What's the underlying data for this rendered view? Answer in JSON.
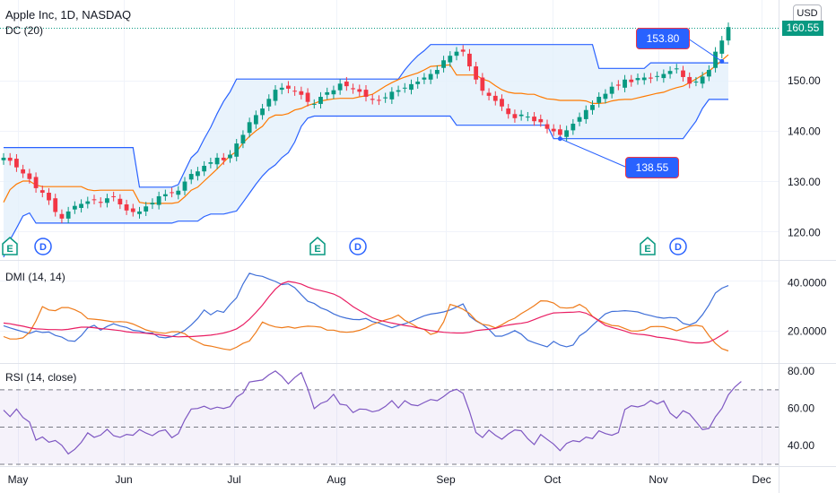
{
  "header": {
    "title": "Apple Inc, 1D, NASDAQ",
    "indicator": "DC (20)",
    "currency": "USD",
    "last_price": "160.55"
  },
  "annotations": {
    "high": "153.80",
    "low": "138.55"
  },
  "panes": {
    "dmi_label": "DMI (14, 14)",
    "rsi_label": "RSI (14, close)"
  },
  "markers": [
    "E",
    "D",
    "E",
    "D",
    "E",
    "D"
  ],
  "colors": {
    "up": "#089981",
    "down": "#f23645",
    "dc_band": "#2962ff",
    "dc_fill": "#e3f0fb",
    "dc_mid": "#ff7a00",
    "dmi_plus": "#3f6fd8",
    "dmi_minus": "#ef7b1a",
    "adx": "#e91e63",
    "rsi": "#7e57c2"
  },
  "chart_data": [
    {
      "type": "candlestick",
      "ylim": [
        115,
        162
      ],
      "yticks": [
        "120.00",
        "130.00",
        "140.00",
        "150.00"
      ],
      "xticks": [
        "May",
        "Jun",
        "Jul",
        "Aug",
        "Sep",
        "Oct",
        "Nov",
        "Dec"
      ],
      "closes": [
        134.8,
        134.2,
        132.9,
        131.7,
        130.6,
        128.8,
        127.9,
        126.4,
        124.1,
        122.8,
        124.2,
        125.3,
        125.7,
        126.2,
        126.5,
        125.9,
        126.8,
        127.1,
        125.6,
        124.4,
        124.1,
        124.2,
        125.2,
        125.9,
        127.2,
        127.6,
        127.9,
        128.3,
        130.1,
        131.6,
        132.1,
        133.2,
        133.9,
        134.8,
        134.3,
        135.4,
        137.6,
        139.3,
        141.8,
        143.2,
        144.5,
        146.4,
        148.2,
        148.6,
        148.4,
        147.9,
        147.2,
        145.8,
        145.4,
        146.8,
        147.7,
        148.1,
        149.4,
        148.9,
        148.3,
        147.8,
        146.8,
        146.2,
        146.1,
        146.7,
        147.8,
        148.1,
        148.6,
        149.3,
        149.8,
        150.6,
        151.3,
        152.1,
        154.0,
        154.9,
        155.7,
        155.7,
        152.8,
        150.2,
        148.0,
        147.0,
        146.0,
        144.9,
        143.4,
        142.6,
        143.3,
        142.9,
        142.0,
        141.8,
        140.5,
        140.0,
        139.3,
        140.2,
        141.5,
        142.8,
        144.2,
        145.2,
        146.8,
        147.4,
        148.8,
        149.0,
        150.2,
        149.7,
        150.5,
        150.6,
        150.4,
        150.9,
        151.3,
        151.9,
        152.4,
        150.7,
        149.4,
        149.8,
        150.8,
        152.1,
        155.7,
        157.9,
        160.55
      ],
      "donchian": {
        "upper": [
          136.8,
          136.8,
          136.8,
          136.8,
          136.8,
          136.8,
          136.8,
          136.8,
          136.8,
          136.8,
          136.8,
          136.8,
          136.8,
          136.8,
          136.8,
          136.8,
          136.8,
          136.8,
          136.8,
          136.8,
          136.8,
          129.0,
          129.0,
          129.0,
          129.0,
          129.0,
          129.0,
          129.5,
          132.2,
          134.8,
          136.0,
          138.5,
          140.8,
          143.5,
          145.9,
          147.8,
          150.3,
          150.3,
          150.3,
          150.3,
          150.3,
          150.3,
          150.3,
          150.3,
          150.3,
          150.3,
          150.3,
          150.3,
          150.3,
          150.3,
          150.3,
          150.3,
          150.3,
          150.3,
          150.3,
          150.3,
          150.3,
          150.3,
          150.3,
          150.3,
          150.3,
          150.3,
          152.1,
          153.6,
          154.9,
          155.9,
          157.1,
          157.1,
          157.1,
          157.1,
          157.1,
          157.1,
          157.1,
          157.1,
          157.1,
          157.1,
          157.1,
          157.1,
          157.1,
          157.1,
          157.1,
          157.1,
          157.1,
          157.1,
          157.1,
          157.1,
          157.1,
          157.1,
          157.1,
          157.1,
          157.1,
          157.1,
          152.4,
          152.4,
          152.4,
          152.4,
          152.4,
          152.4,
          152.4,
          152.4,
          153.5,
          153.5,
          153.5,
          153.5,
          153.5,
          153.5,
          153.5,
          153.5,
          153.5,
          153.5,
          153.5,
          153.5,
          153.5
        ],
        "middle": [
          126.0,
          128.5,
          129.6,
          130.2,
          130.2,
          129.4,
          129.1,
          129.1,
          129.1,
          129.1,
          129.1,
          129.1,
          129.1,
          128.5,
          128.3,
          128.4,
          128.4,
          128.4,
          128.4,
          128.4,
          128.4,
          126.0,
          125.8,
          125.8,
          125.8,
          125.8,
          125.8,
          126.0,
          127.1,
          128.4,
          129.0,
          130.2,
          131.4,
          132.6,
          133.9,
          135.2,
          136.0,
          137.7,
          139.0,
          140.1,
          141.0,
          142.6,
          143.2,
          143.2,
          143.5,
          144.2,
          144.5,
          145.1,
          145.5,
          146.0,
          146.2,
          146.4,
          146.5,
          146.5,
          146.5,
          146.8,
          147.0,
          147.3,
          148.1,
          148.9,
          149.6,
          150.2,
          150.7,
          151.1,
          151.5,
          152.1,
          152.8,
          152.9,
          153.0,
          153.1,
          151.1,
          151.1,
          151.1,
          151.1,
          150.3,
          149.9,
          149.0,
          148.2,
          147.7,
          147.5,
          147.5,
          147.3,
          147.3,
          146.8,
          146.4,
          146.3,
          146.1,
          146.1,
          146.1,
          146.1,
          146.0,
          145.5,
          145.5,
          145.6,
          146.0,
          146.2,
          146.3,
          146.3,
          146.6,
          146.9,
          147.2,
          147.5,
          147.7,
          148.2,
          148.6,
          148.9,
          149.6,
          150.3,
          151.1,
          151.9,
          152.9,
          154.0,
          155.1
        ],
        "lower": [
          115.2,
          118.6,
          120.9,
          123.3,
          123.9,
          121.9,
          121.9,
          121.9,
          121.9,
          121.9,
          121.9,
          121.9,
          121.9,
          121.9,
          121.9,
          121.9,
          121.9,
          121.9,
          121.9,
          121.9,
          121.9,
          121.9,
          121.9,
          121.9,
          121.9,
          121.9,
          121.9,
          122.3,
          122.3,
          122.3,
          122.3,
          123.2,
          123.7,
          123.7,
          123.7,
          124.0,
          124.3,
          126.0,
          127.8,
          129.6,
          131.2,
          132.5,
          133.4,
          134.8,
          135.8,
          137.9,
          141.0,
          142.6,
          143.0,
          143.0,
          143.0,
          143.0,
          143.0,
          143.0,
          143.0,
          143.0,
          143.0,
          143.0,
          143.0,
          143.0,
          143.0,
          143.0,
          143.0,
          143.0,
          143.0,
          143.0,
          143.0,
          143.0,
          143.0,
          143.0,
          141.2,
          141.2,
          141.2,
          141.2,
          141.2,
          141.2,
          141.2,
          141.2,
          141.2,
          141.2,
          141.2,
          141.2,
          141.2,
          141.2,
          141.2,
          138.55,
          138.55,
          138.55,
          138.55,
          138.55,
          138.55,
          138.55,
          138.55,
          138.55,
          138.55,
          138.55,
          138.55,
          138.55,
          138.55,
          138.55,
          138.55,
          138.55,
          138.55,
          138.55,
          138.55,
          138.55,
          140.3,
          142.0,
          144.5,
          146.3,
          146.3,
          146.3,
          146.3
        ]
      },
      "annotations": [
        {
          "label": "153.80",
          "value": 153.8
        },
        {
          "label": "138.55",
          "value": 138.55
        }
      ]
    },
    {
      "type": "line",
      "title": "DMI (14, 14)",
      "ylim": [
        8,
        48
      ],
      "yticks": [
        "20.0000",
        "40.0000"
      ],
      "series": [
        {
          "values": [
            22.3,
            21.4,
            20.6,
            19.8,
            19.1,
            20.1,
            19.5,
            19.7,
            18.3,
            17.6,
            16.1,
            15.9,
            18.2,
            21.4,
            22.5,
            20.5,
            22.0,
            23.1,
            22.2,
            21.6,
            20.4,
            20.1,
            19.3,
            19.3,
            17.6,
            17.3,
            17.8,
            19.0,
            20.4,
            22.6,
            25.3,
            28.8,
            26.8,
            28.5,
            27.8,
            31.1,
            33.8,
            39.5,
            44.0,
            43.1,
            42.7,
            41.6,
            40.6,
            39.3,
            39.6,
            38.0,
            35.1,
            32.4,
            31.5,
            29.7,
            28.7,
            27.2,
            26.1,
            25.4,
            24.9,
            24.8,
            25.3,
            24.0,
            23.4,
            22.4,
            21.5,
            22.4,
            23.1,
            24.1,
            25.3,
            26.4,
            27.1,
            27.5,
            28.0,
            28.8,
            30.0,
            31.3,
            26.3,
            24.3,
            22.8,
            20.8,
            18.0,
            18.0,
            19.0,
            20.3,
            18.8,
            16.3,
            15.3,
            14.4,
            13.6,
            15.8,
            14.3,
            13.6,
            14.3,
            18.1,
            19.9,
            22.5,
            24.9,
            27.2,
            28.2,
            28.3,
            28.5,
            28.3,
            28.0,
            27.1,
            26.5,
            25.8,
            25.4,
            25.7,
            25.5,
            23.3,
            22.6,
            23.7,
            26.8,
            30.9,
            35.8,
            37.8,
            38.9
          ]
        },
        {
          "values": [
            17.8,
            16.8,
            16.8,
            17.3,
            19.6,
            24.3,
            30.2,
            28.8,
            28.5,
            29.8,
            29.8,
            28.9,
            27.6,
            25.2,
            25.0,
            24.7,
            24.3,
            23.9,
            24.0,
            23.8,
            23.0,
            21.8,
            20.6,
            19.9,
            19.4,
            19.2,
            19.8,
            19.8,
            19.0,
            16.9,
            15.6,
            14.3,
            13.9,
            13.3,
            12.7,
            12.3,
            13.4,
            15.0,
            16.0,
            19.6,
            23.8,
            22.6,
            21.8,
            21.5,
            21.9,
            21.3,
            21.8,
            22.1,
            22.0,
            21.7,
            20.5,
            20.5,
            19.8,
            19.6,
            19.8,
            20.4,
            21.4,
            22.8,
            23.8,
            24.7,
            25.5,
            26.7,
            24.5,
            23.2,
            21.6,
            20.8,
            18.7,
            19.6,
            23.9,
            31.1,
            30.3,
            29.1,
            27.4,
            24.5,
            22.9,
            22.5,
            21.4,
            22.7,
            24.3,
            25.4,
            27.3,
            28.9,
            30.6,
            32.6,
            32.5,
            31.7,
            29.8,
            29.6,
            29.8,
            31.1,
            29.5,
            26.2,
            24.5,
            23.4,
            22.4,
            22.2,
            21.1,
            20.1,
            20.1,
            20.6,
            21.9,
            22.0,
            21.9,
            21.1,
            20.2,
            21.2,
            22.1,
            22.5,
            22.0,
            18.2,
            15.0,
            12.8,
            11.9
          ]
        },
        {
          "values": [
            23.4,
            23.1,
            22.6,
            22.1,
            21.5,
            21.0,
            20.9,
            20.7,
            20.7,
            20.6,
            20.8,
            21.3,
            21.7,
            21.7,
            21.5,
            21.1,
            20.9,
            20.6,
            20.3,
            19.8,
            19.5,
            19.4,
            19.2,
            18.9,
            18.6,
            18.2,
            17.9,
            17.7,
            17.8,
            17.8,
            18.0,
            18.2,
            18.4,
            18.8,
            19.3,
            20.0,
            21.0,
            22.7,
            25.0,
            27.8,
            30.8,
            34.3,
            37.4,
            39.7,
            40.6,
            40.2,
            39.5,
            38.3,
            37.4,
            36.8,
            36.2,
            35.4,
            34.1,
            32.2,
            30.2,
            28.6,
            27.1,
            25.6,
            24.6,
            24.0,
            23.4,
            22.9,
            22.4,
            22.0,
            21.4,
            20.8,
            20.3,
            19.9,
            19.6,
            19.4,
            19.3,
            19.3,
            19.6,
            20.3,
            20.6,
            20.8,
            21.2,
            22.0,
            22.6,
            23.0,
            23.3,
            23.8,
            24.8,
            25.9,
            26.8,
            27.6,
            27.7,
            27.8,
            27.9,
            28.1,
            27.5,
            26.1,
            24.3,
            22.5,
            21.6,
            20.9,
            20.1,
            19.2,
            18.8,
            18.6,
            18.2,
            17.6,
            17.3,
            16.9,
            16.5,
            15.9,
            15.4,
            15.2,
            15.2,
            15.6,
            16.9,
            18.5,
            20.3
          ]
        }
      ]
    },
    {
      "type": "line",
      "title": "RSI (14, close)",
      "ylim": [
        30,
        82
      ],
      "yticks": [
        "40.00",
        "60.00",
        "80.00"
      ],
      "bands": [
        70,
        50,
        30
      ],
      "series": [
        {
          "values": [
            59.1,
            55.6,
            59.7,
            55.2,
            52.7,
            43.0,
            44.7,
            41.9,
            42.8,
            40.2,
            35.6,
            38.1,
            41.8,
            46.9,
            44.5,
            45.7,
            48.8,
            45.4,
            44.5,
            46.1,
            45.6,
            48.7,
            46.8,
            45.4,
            47.7,
            48.5,
            44.3,
            46.5,
            53.9,
            59.7,
            60.0,
            61.2,
            59.6,
            60.7,
            60.0,
            61.0,
            66.1,
            68.3,
            74.2,
            74.8,
            75.3,
            78.1,
            80.1,
            77.3,
            73.2,
            76.6,
            79.3,
            70.6,
            59.9,
            62.7,
            64.0,
            67.6,
            62.3,
            61.8,
            57.8,
            59.7,
            59.5,
            58.2,
            59.0,
            61.1,
            64.2,
            60.3,
            64.2,
            62.0,
            61.5,
            63.2,
            64.8,
            64.2,
            66.4,
            69.1,
            70.3,
            68.1,
            58.4,
            47.1,
            44.4,
            48.4,
            45.6,
            43.5,
            46.3,
            48.5,
            48.0,
            43.7,
            40.6,
            46.0,
            43.4,
            40.9,
            37.3,
            41.2,
            42.7,
            42.1,
            44.6,
            43.8,
            48.0,
            46.5,
            45.6,
            47.1,
            59.4,
            61.5,
            60.8,
            61.8,
            64.3,
            62.4,
            64.1,
            57.5,
            54.8,
            58.8,
            57.1,
            52.9,
            48.7,
            49.3,
            55.5,
            60.0,
            67.3,
            71.5,
            74.5
          ]
        }
      ]
    }
  ]
}
